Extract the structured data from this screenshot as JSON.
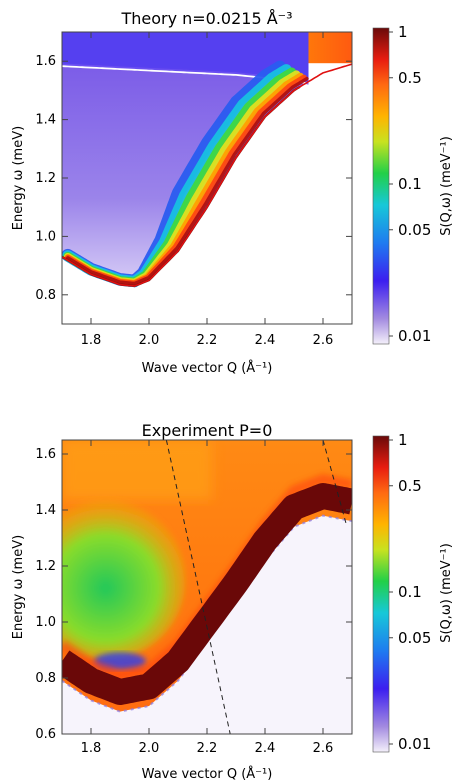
{
  "chart_data": [
    {
      "type": "heatmap",
      "title": "Theory n=0.0215 Å⁻³",
      "xlabel": "Wave vector Q (Å⁻¹)",
      "ylabel": "Energy ω (meV)",
      "colorbar_label": "S(Q,ω) (meV⁻¹)",
      "xlim": [
        1.7,
        2.7
      ],
      "ylim": [
        0.7,
        1.7
      ],
      "x_ticks": [
        "1.8",
        "2.0",
        "2.2",
        "2.4",
        "2.6"
      ],
      "y_ticks": [
        "0.8",
        "1.0",
        "1.2",
        "1.4",
        "1.6"
      ],
      "colorbar_ticks": [
        "1",
        "0.5",
        "0.1",
        "0.05",
        "0.01"
      ],
      "colorbar_scale": "log",
      "dispersion_curve": {
        "color": "#e01010",
        "x": [
          1.7,
          1.8,
          1.9,
          1.95,
          2.0,
          2.1,
          2.2,
          2.3,
          2.4,
          2.5,
          2.6,
          2.7
        ],
        "y": [
          0.93,
          0.87,
          0.835,
          0.83,
          0.85,
          0.95,
          1.1,
          1.27,
          1.41,
          1.5,
          1.56,
          1.59
        ]
      },
      "upper_boundary_x": [
        1.7,
        1.8,
        1.9,
        2.0,
        2.1,
        2.2,
        2.3,
        2.4,
        2.5,
        2.55
      ],
      "upper_boundary_y": [
        1.62,
        1.615,
        1.61,
        1.605,
        1.6,
        1.595,
        1.59,
        1.58,
        1.57,
        1.56
      ]
    },
    {
      "type": "heatmap",
      "title": "Experiment P=0",
      "xlabel": "Wave vector Q (Å⁻¹)",
      "ylabel": "Energy ω (meV)",
      "colorbar_label": "S(Q,ω) (meV⁻¹)",
      "xlim": [
        1.7,
        2.7
      ],
      "ylim": [
        0.6,
        1.65
      ],
      "x_ticks": [
        "1.8",
        "2.0",
        "2.2",
        "2.4",
        "2.6"
      ],
      "y_ticks": [
        "0.6",
        "0.8",
        "1.0",
        "1.2",
        "1.4",
        "1.6"
      ],
      "colorbar_ticks": [
        "1",
        "0.5",
        "0.1",
        "0.05",
        "0.01"
      ],
      "colorbar_scale": "log",
      "dispersion_band": {
        "x": [
          1.7,
          1.8,
          1.9,
          2.0,
          2.1,
          2.2,
          2.3,
          2.4,
          2.5,
          2.6,
          2.7
        ],
        "y": [
          0.86,
          0.79,
          0.75,
          0.77,
          0.86,
          1.0,
          1.14,
          1.29,
          1.41,
          1.45,
          1.43
        ]
      },
      "dashed_lines": [
        {
          "x": [
            2.06,
            2.28
          ],
          "y": [
            1.65,
            0.6
          ]
        },
        {
          "x": [
            2.6,
            2.68
          ],
          "y": [
            1.65,
            1.35
          ]
        }
      ]
    }
  ]
}
